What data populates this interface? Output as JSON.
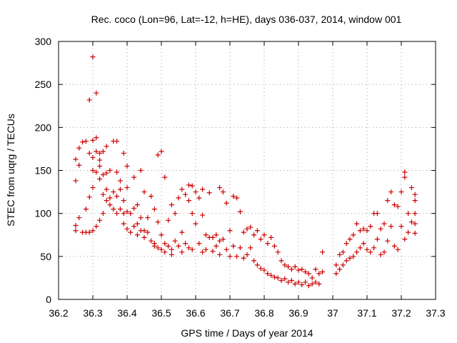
{
  "chart_data": {
    "type": "scatter",
    "title": "Rec. coco (Lon=96, Lat=-12, h=HE), days 036-037, 2014, window 001",
    "xlabel": "GPS time / Days of year 2014",
    "ylabel": "STEC from uqrg / TECUs",
    "xlim": [
      36.2,
      37.3
    ],
    "ylim": [
      0,
      300
    ],
    "xticks": [
      "36.2",
      "36.3",
      "36.4",
      "36.5",
      "36.6",
      "36.7",
      "36.8",
      "36.9",
      "37",
      "37.1",
      "37.2",
      "37.3"
    ],
    "yticks": [
      "0",
      "50",
      "100",
      "150",
      "200",
      "250",
      "300"
    ],
    "grid": true,
    "marker": "plus",
    "color": "#cc0000",
    "points": [
      [
        36.25,
        163
      ],
      [
        36.25,
        138
      ],
      [
        36.25,
        86
      ],
      [
        36.25,
        80
      ],
      [
        36.26,
        176
      ],
      [
        36.26,
        156
      ],
      [
        36.26,
        95
      ],
      [
        36.27,
        183
      ],
      [
        36.27,
        78
      ],
      [
        36.28,
        184
      ],
      [
        36.28,
        105
      ],
      [
        36.28,
        78
      ],
      [
        36.29,
        232
      ],
      [
        36.29,
        170
      ],
      [
        36.29,
        119
      ],
      [
        36.29,
        78
      ],
      [
        36.3,
        282
      ],
      [
        36.3,
        185
      ],
      [
        36.3,
        165
      ],
      [
        36.3,
        150
      ],
      [
        36.3,
        130
      ],
      [
        36.3,
        80
      ],
      [
        36.31,
        240
      ],
      [
        36.31,
        188
      ],
      [
        36.31,
        172
      ],
      [
        36.31,
        148
      ],
      [
        36.31,
        85
      ],
      [
        36.32,
        170
      ],
      [
        36.32,
        162
      ],
      [
        36.32,
        155
      ],
      [
        36.32,
        140
      ],
      [
        36.32,
        92
      ],
      [
        36.33,
        172
      ],
      [
        36.33,
        145
      ],
      [
        36.33,
        122
      ],
      [
        36.33,
        100
      ],
      [
        36.34,
        178
      ],
      [
        36.34,
        147
      ],
      [
        36.34,
        128
      ],
      [
        36.34,
        115
      ],
      [
        36.35,
        150
      ],
      [
        36.35,
        118
      ],
      [
        36.35,
        110
      ],
      [
        36.36,
        184
      ],
      [
        36.36,
        125
      ],
      [
        36.36,
        105
      ],
      [
        36.37,
        184
      ],
      [
        36.37,
        148
      ],
      [
        36.37,
        120
      ],
      [
        36.37,
        100
      ],
      [
        36.38,
        138
      ],
      [
        36.38,
        128
      ],
      [
        36.38,
        105
      ],
      [
        36.39,
        170
      ],
      [
        36.39,
        115
      ],
      [
        36.39,
        100
      ],
      [
        36.39,
        88
      ],
      [
        36.4,
        155
      ],
      [
        36.4,
        130
      ],
      [
        36.4,
        102
      ],
      [
        36.4,
        82
      ],
      [
        36.41,
        100
      ],
      [
        36.41,
        78
      ],
      [
        36.42,
        142
      ],
      [
        36.42,
        106
      ],
      [
        36.42,
        85
      ],
      [
        36.43,
        110
      ],
      [
        36.43,
        88
      ],
      [
        36.43,
        75
      ],
      [
        36.44,
        150
      ],
      [
        36.44,
        95
      ],
      [
        36.44,
        80
      ],
      [
        36.45,
        125
      ],
      [
        36.45,
        80
      ],
      [
        36.45,
        72
      ],
      [
        36.46,
        95
      ],
      [
        36.46,
        78
      ],
      [
        36.47,
        120
      ],
      [
        36.47,
        68
      ],
      [
        36.48,
        105
      ],
      [
        36.48,
        65
      ],
      [
        36.48,
        62
      ],
      [
        36.49,
        168
      ],
      [
        36.49,
        90
      ],
      [
        36.49,
        60
      ],
      [
        36.5,
        172
      ],
      [
        36.5,
        75
      ],
      [
        36.5,
        58
      ],
      [
        36.51,
        142
      ],
      [
        36.51,
        65
      ],
      [
        36.51,
        55
      ],
      [
        36.52,
        92
      ],
      [
        36.52,
        62
      ],
      [
        36.53,
        110
      ],
      [
        36.53,
        58
      ],
      [
        36.53,
        52
      ],
      [
        36.54,
        100
      ],
      [
        36.54,
        68
      ],
      [
        36.55,
        118
      ],
      [
        36.55,
        62
      ],
      [
        36.56,
        128
      ],
      [
        36.56,
        78
      ],
      [
        36.56,
        55
      ],
      [
        36.57,
        122
      ],
      [
        36.57,
        65
      ],
      [
        36.58,
        133
      ],
      [
        36.58,
        115
      ],
      [
        36.58,
        60
      ],
      [
        36.59,
        132
      ],
      [
        36.59,
        100
      ],
      [
        36.59,
        58
      ],
      [
        36.6,
        125
      ],
      [
        36.6,
        88
      ],
      [
        36.61,
        118
      ],
      [
        36.61,
        65
      ],
      [
        36.62,
        128
      ],
      [
        36.62,
        98
      ],
      [
        36.62,
        55
      ],
      [
        36.63,
        75
      ],
      [
        36.63,
        58
      ],
      [
        36.64,
        124
      ],
      [
        36.64,
        72
      ],
      [
        36.65,
        72
      ],
      [
        36.65,
        56
      ],
      [
        36.66,
        75
      ],
      [
        36.66,
        62
      ],
      [
        36.67,
        130
      ],
      [
        36.67,
        68
      ],
      [
        36.67,
        52
      ],
      [
        36.68,
        125
      ],
      [
        36.68,
        70
      ],
      [
        36.69,
        112
      ],
      [
        36.69,
        58
      ],
      [
        36.7,
        80
      ],
      [
        36.7,
        50
      ],
      [
        36.71,
        120
      ],
      [
        36.71,
        62
      ],
      [
        36.72,
        118
      ],
      [
        36.72,
        50
      ],
      [
        36.73,
        102
      ],
      [
        36.73,
        60
      ],
      [
        36.74,
        78
      ],
      [
        36.74,
        48
      ],
      [
        36.75,
        82
      ],
      [
        36.75,
        52
      ],
      [
        36.76,
        84
      ],
      [
        36.76,
        60
      ],
      [
        36.77,
        75
      ],
      [
        36.77,
        45
      ],
      [
        36.78,
        80
      ],
      [
        36.78,
        40
      ],
      [
        36.79,
        70
      ],
      [
        36.79,
        36
      ],
      [
        36.8,
        75
      ],
      [
        36.8,
        34
      ],
      [
        36.81,
        65
      ],
      [
        36.81,
        30
      ],
      [
        36.82,
        72
      ],
      [
        36.82,
        28
      ],
      [
        36.83,
        62
      ],
      [
        36.83,
        26
      ],
      [
        36.84,
        55
      ],
      [
        36.84,
        25
      ],
      [
        36.85,
        45
      ],
      [
        36.85,
        22
      ],
      [
        36.86,
        40
      ],
      [
        36.86,
        24
      ],
      [
        36.87,
        38
      ],
      [
        36.87,
        20
      ],
      [
        36.88,
        35
      ],
      [
        36.88,
        22
      ],
      [
        36.89,
        38
      ],
      [
        36.89,
        18
      ],
      [
        36.9,
        34
      ],
      [
        36.9,
        20
      ],
      [
        36.91,
        35
      ],
      [
        36.91,
        17
      ],
      [
        36.92,
        32
      ],
      [
        36.92,
        20
      ],
      [
        36.93,
        30
      ],
      [
        36.93,
        16
      ],
      [
        36.94,
        25
      ],
      [
        36.94,
        18
      ],
      [
        36.95,
        35
      ],
      [
        36.95,
        20
      ],
      [
        36.96,
        30
      ],
      [
        36.96,
        18
      ],
      [
        36.97,
        55
      ],
      [
        36.97,
        32
      ],
      [
        37.01,
        40
      ],
      [
        37.01,
        30
      ],
      [
        37.02,
        52
      ],
      [
        37.02,
        35
      ],
      [
        37.03,
        55
      ],
      [
        37.03,
        40
      ],
      [
        37.04,
        65
      ],
      [
        37.04,
        45
      ],
      [
        37.05,
        70
      ],
      [
        37.05,
        48
      ],
      [
        37.06,
        75
      ],
      [
        37.06,
        50
      ],
      [
        37.07,
        88
      ],
      [
        37.07,
        55
      ],
      [
        37.08,
        80
      ],
      [
        37.08,
        60
      ],
      [
        37.09,
        82
      ],
      [
        37.09,
        65
      ],
      [
        37.1,
        80
      ],
      [
        37.1,
        58
      ],
      [
        37.11,
        85
      ],
      [
        37.11,
        55
      ],
      [
        37.12,
        100
      ],
      [
        37.12,
        60
      ],
      [
        37.13,
        100
      ],
      [
        37.13,
        70
      ],
      [
        37.14,
        82
      ],
      [
        37.14,
        52
      ],
      [
        37.15,
        88
      ],
      [
        37.15,
        55
      ],
      [
        37.16,
        115
      ],
      [
        37.16,
        68
      ],
      [
        37.17,
        125
      ],
      [
        37.17,
        85
      ],
      [
        37.18,
        110
      ],
      [
        37.18,
        62
      ],
      [
        37.19,
        108
      ],
      [
        37.19,
        58
      ],
      [
        37.2,
        125
      ],
      [
        37.2,
        85
      ],
      [
        37.21,
        148
      ],
      [
        37.21,
        142
      ],
      [
        37.21,
        70
      ],
      [
        37.22,
        100
      ],
      [
        37.22,
        78
      ],
      [
        37.23,
        130
      ],
      [
        37.23,
        90
      ],
      [
        37.24,
        122
      ],
      [
        37.24,
        115
      ],
      [
        37.24,
        100
      ],
      [
        37.24,
        88
      ],
      [
        37.24,
        77
      ]
    ]
  }
}
